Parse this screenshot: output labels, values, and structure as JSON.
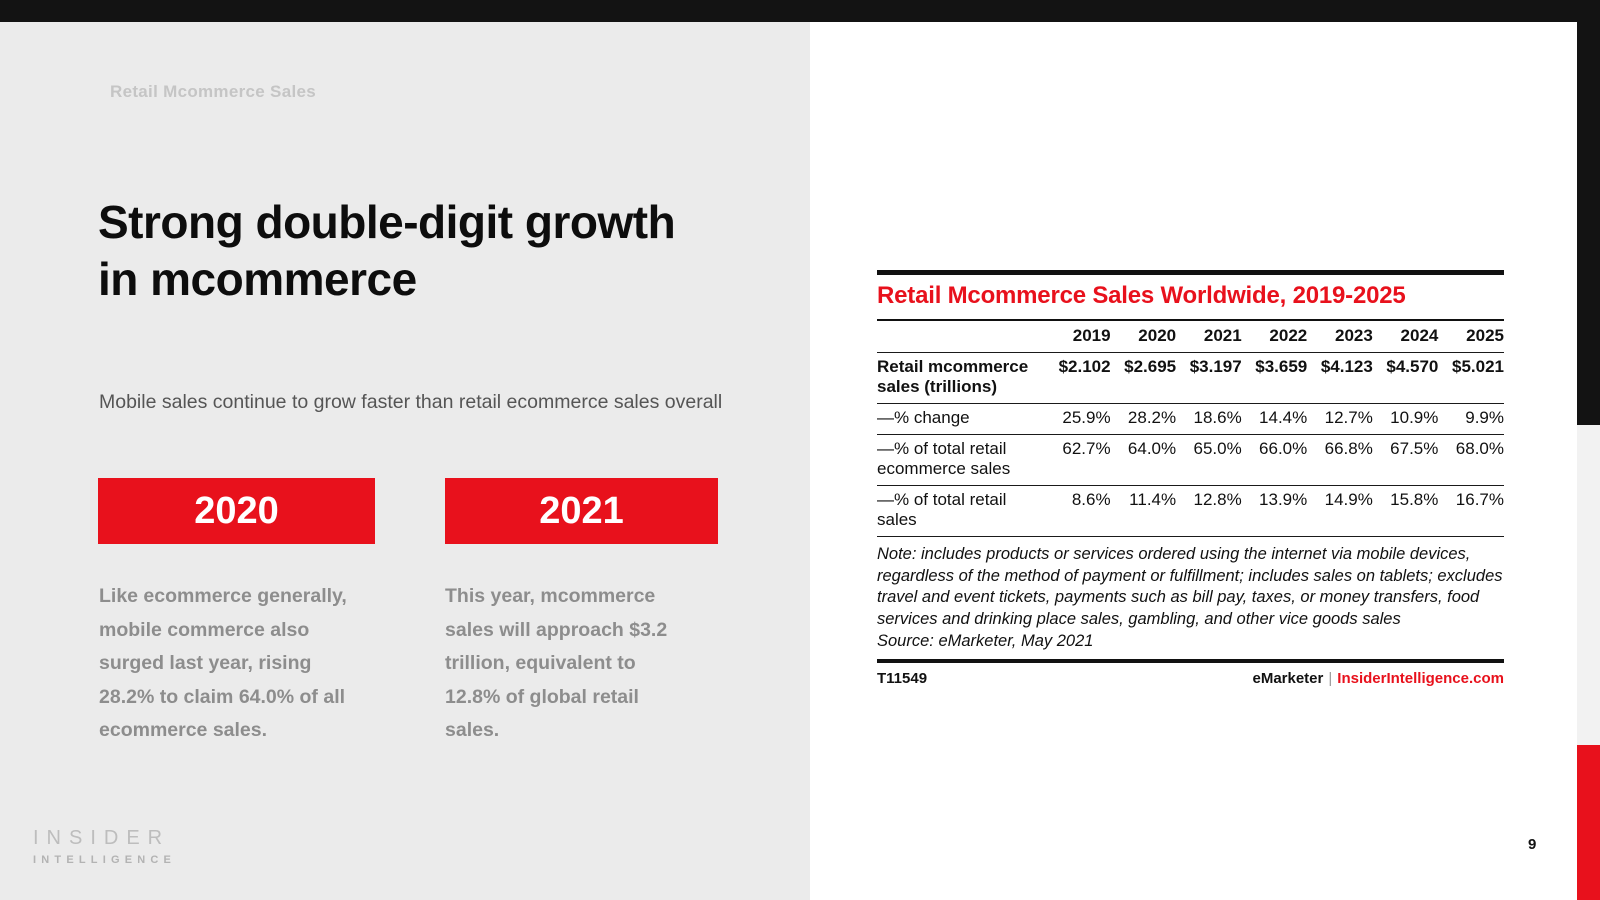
{
  "eyebrow": "Retail Mcommerce Sales",
  "title": "Strong double-digit growth in mcommerce",
  "subtitle": "Mobile sales continue to grow faster than retail ecommerce sales overall",
  "highlights": [
    {
      "year": "2020",
      "text": "Like ecommerce generally, mobile commerce also surged last year, rising 28.2% to claim 64.0% of all ecommerce sales."
    },
    {
      "year": "2021",
      "text": "This year, mcommerce sales will approach $3.2 trillion, equivalent to 12.8% of global retail sales."
    }
  ],
  "logo": {
    "line1": "INSIDER",
    "line2": "INTELLIGENCE"
  },
  "page_number": "9",
  "colors": {
    "accent_red": "#e8111c",
    "panel_gray": "#ebebeb",
    "bar_black": "#131313"
  },
  "chart_data": {
    "type": "table",
    "title": "Retail Mcommerce Sales Worldwide, 2019-2025",
    "columns": [
      "2019",
      "2020",
      "2021",
      "2022",
      "2023",
      "2024",
      "2025"
    ],
    "rows": [
      {
        "label": "Retail mcommerce sales (trillions)",
        "values": [
          "$2.102",
          "$2.695",
          "$3.197",
          "$3.659",
          "$4.123",
          "$4.570",
          "$5.021"
        ]
      },
      {
        "label": "—% change",
        "values": [
          "25.9%",
          "28.2%",
          "18.6%",
          "14.4%",
          "12.7%",
          "10.9%",
          "9.9%"
        ]
      },
      {
        "label": "—% of total retail ecommerce sales",
        "values": [
          "62.7%",
          "64.0%",
          "65.0%",
          "66.0%",
          "66.8%",
          "67.5%",
          "68.0%"
        ]
      },
      {
        "label": "—% of total retail sales",
        "values": [
          "8.6%",
          "11.4%",
          "12.8%",
          "13.9%",
          "14.9%",
          "15.8%",
          "16.7%"
        ]
      }
    ],
    "note": "Note: includes products or services ordered using the internet via mobile devices, regardless of the method of payment or fulfillment; includes sales on tablets; excludes travel and event tickets, payments such as bill pay, taxes, or money transfers, food services and drinking place sales, gambling, and other vice goods sales",
    "source": "Source: eMarketer, May 2021",
    "footer": {
      "id": "T11549",
      "brand": "eMarketer",
      "separator": "|",
      "site": "InsiderIntelligence.com"
    }
  }
}
